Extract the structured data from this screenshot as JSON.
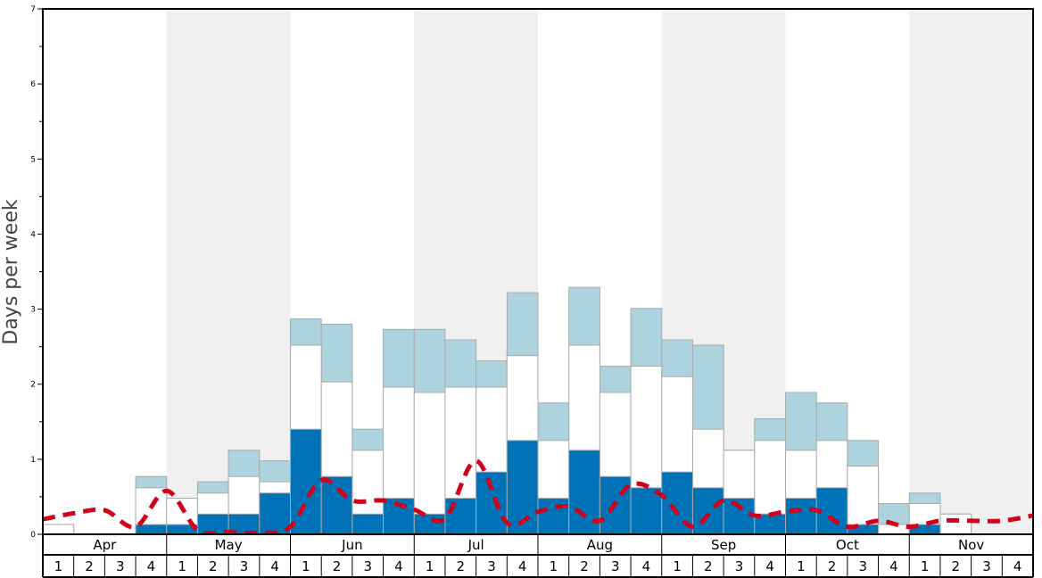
{
  "chart_data": {
    "type": "bar",
    "ylabel": "Days per week",
    "ylim": [
      0,
      7
    ],
    "yticks": [
      "0",
      "1",
      "2",
      "3",
      "4",
      "5",
      "6",
      "7"
    ],
    "months": [
      "Apr",
      "May",
      "Jun",
      "Jul",
      "Aug",
      "Sep",
      "Oct",
      "Nov"
    ],
    "week_labels": [
      "1",
      "2",
      "3",
      "4"
    ],
    "colors": {
      "dark": "#0072b8",
      "white": "#ffffff",
      "light": "#add3df",
      "line": "#d0021b",
      "band": "#f0f0f0",
      "bar_border": "#aaaaaa"
    },
    "series": [
      {
        "values": [
          0,
          0,
          0,
          0.13,
          0.13,
          0.27,
          0.27,
          0.55,
          1.4,
          0.77,
          0.27,
          0.48,
          0.27,
          0.48,
          0.83,
          1.25,
          0.48,
          1.12,
          0.77,
          0.62,
          0.83,
          0.62,
          0.48,
          0.27,
          0.48,
          0.62,
          0.13,
          0,
          0.13,
          0,
          0,
          0
        ]
      },
      {
        "values": [
          0.13,
          0,
          0,
          0.62,
          0.48,
          0.55,
          0.77,
          0.7,
          2.52,
          2.03,
          1.12,
          1.96,
          1.89,
          1.96,
          1.96,
          2.38,
          1.25,
          2.52,
          1.89,
          2.24,
          2.1,
          1.4,
          1.12,
          1.25,
          1.12,
          1.25,
          0.91,
          0.13,
          0.41,
          0.27,
          0,
          0
        ]
      },
      {
        "values": [
          0.13,
          0,
          0,
          0.77,
          0.48,
          0.7,
          1.12,
          0.98,
          2.87,
          2.8,
          1.4,
          2.73,
          2.73,
          2.59,
          2.31,
          3.22,
          1.75,
          3.29,
          2.24,
          3.01,
          2.59,
          2.52,
          1.12,
          1.54,
          1.89,
          1.75,
          1.25,
          0.41,
          0.55,
          0.27,
          0,
          0
        ]
      }
    ],
    "line_values": [
      0.2,
      0.28,
      0.32,
      0.1,
      0.58,
      0.06,
      0.03,
      0.02,
      0.1,
      0.72,
      0.45,
      0.45,
      0.33,
      0.21,
      0.98,
      0.15,
      0.3,
      0.37,
      0.18,
      0.66,
      0.52,
      0.1,
      0.45,
      0.25,
      0.3,
      0.32,
      0.1,
      0.18,
      0.1,
      0.18,
      0.18,
      0.18,
      0.25
    ]
  }
}
